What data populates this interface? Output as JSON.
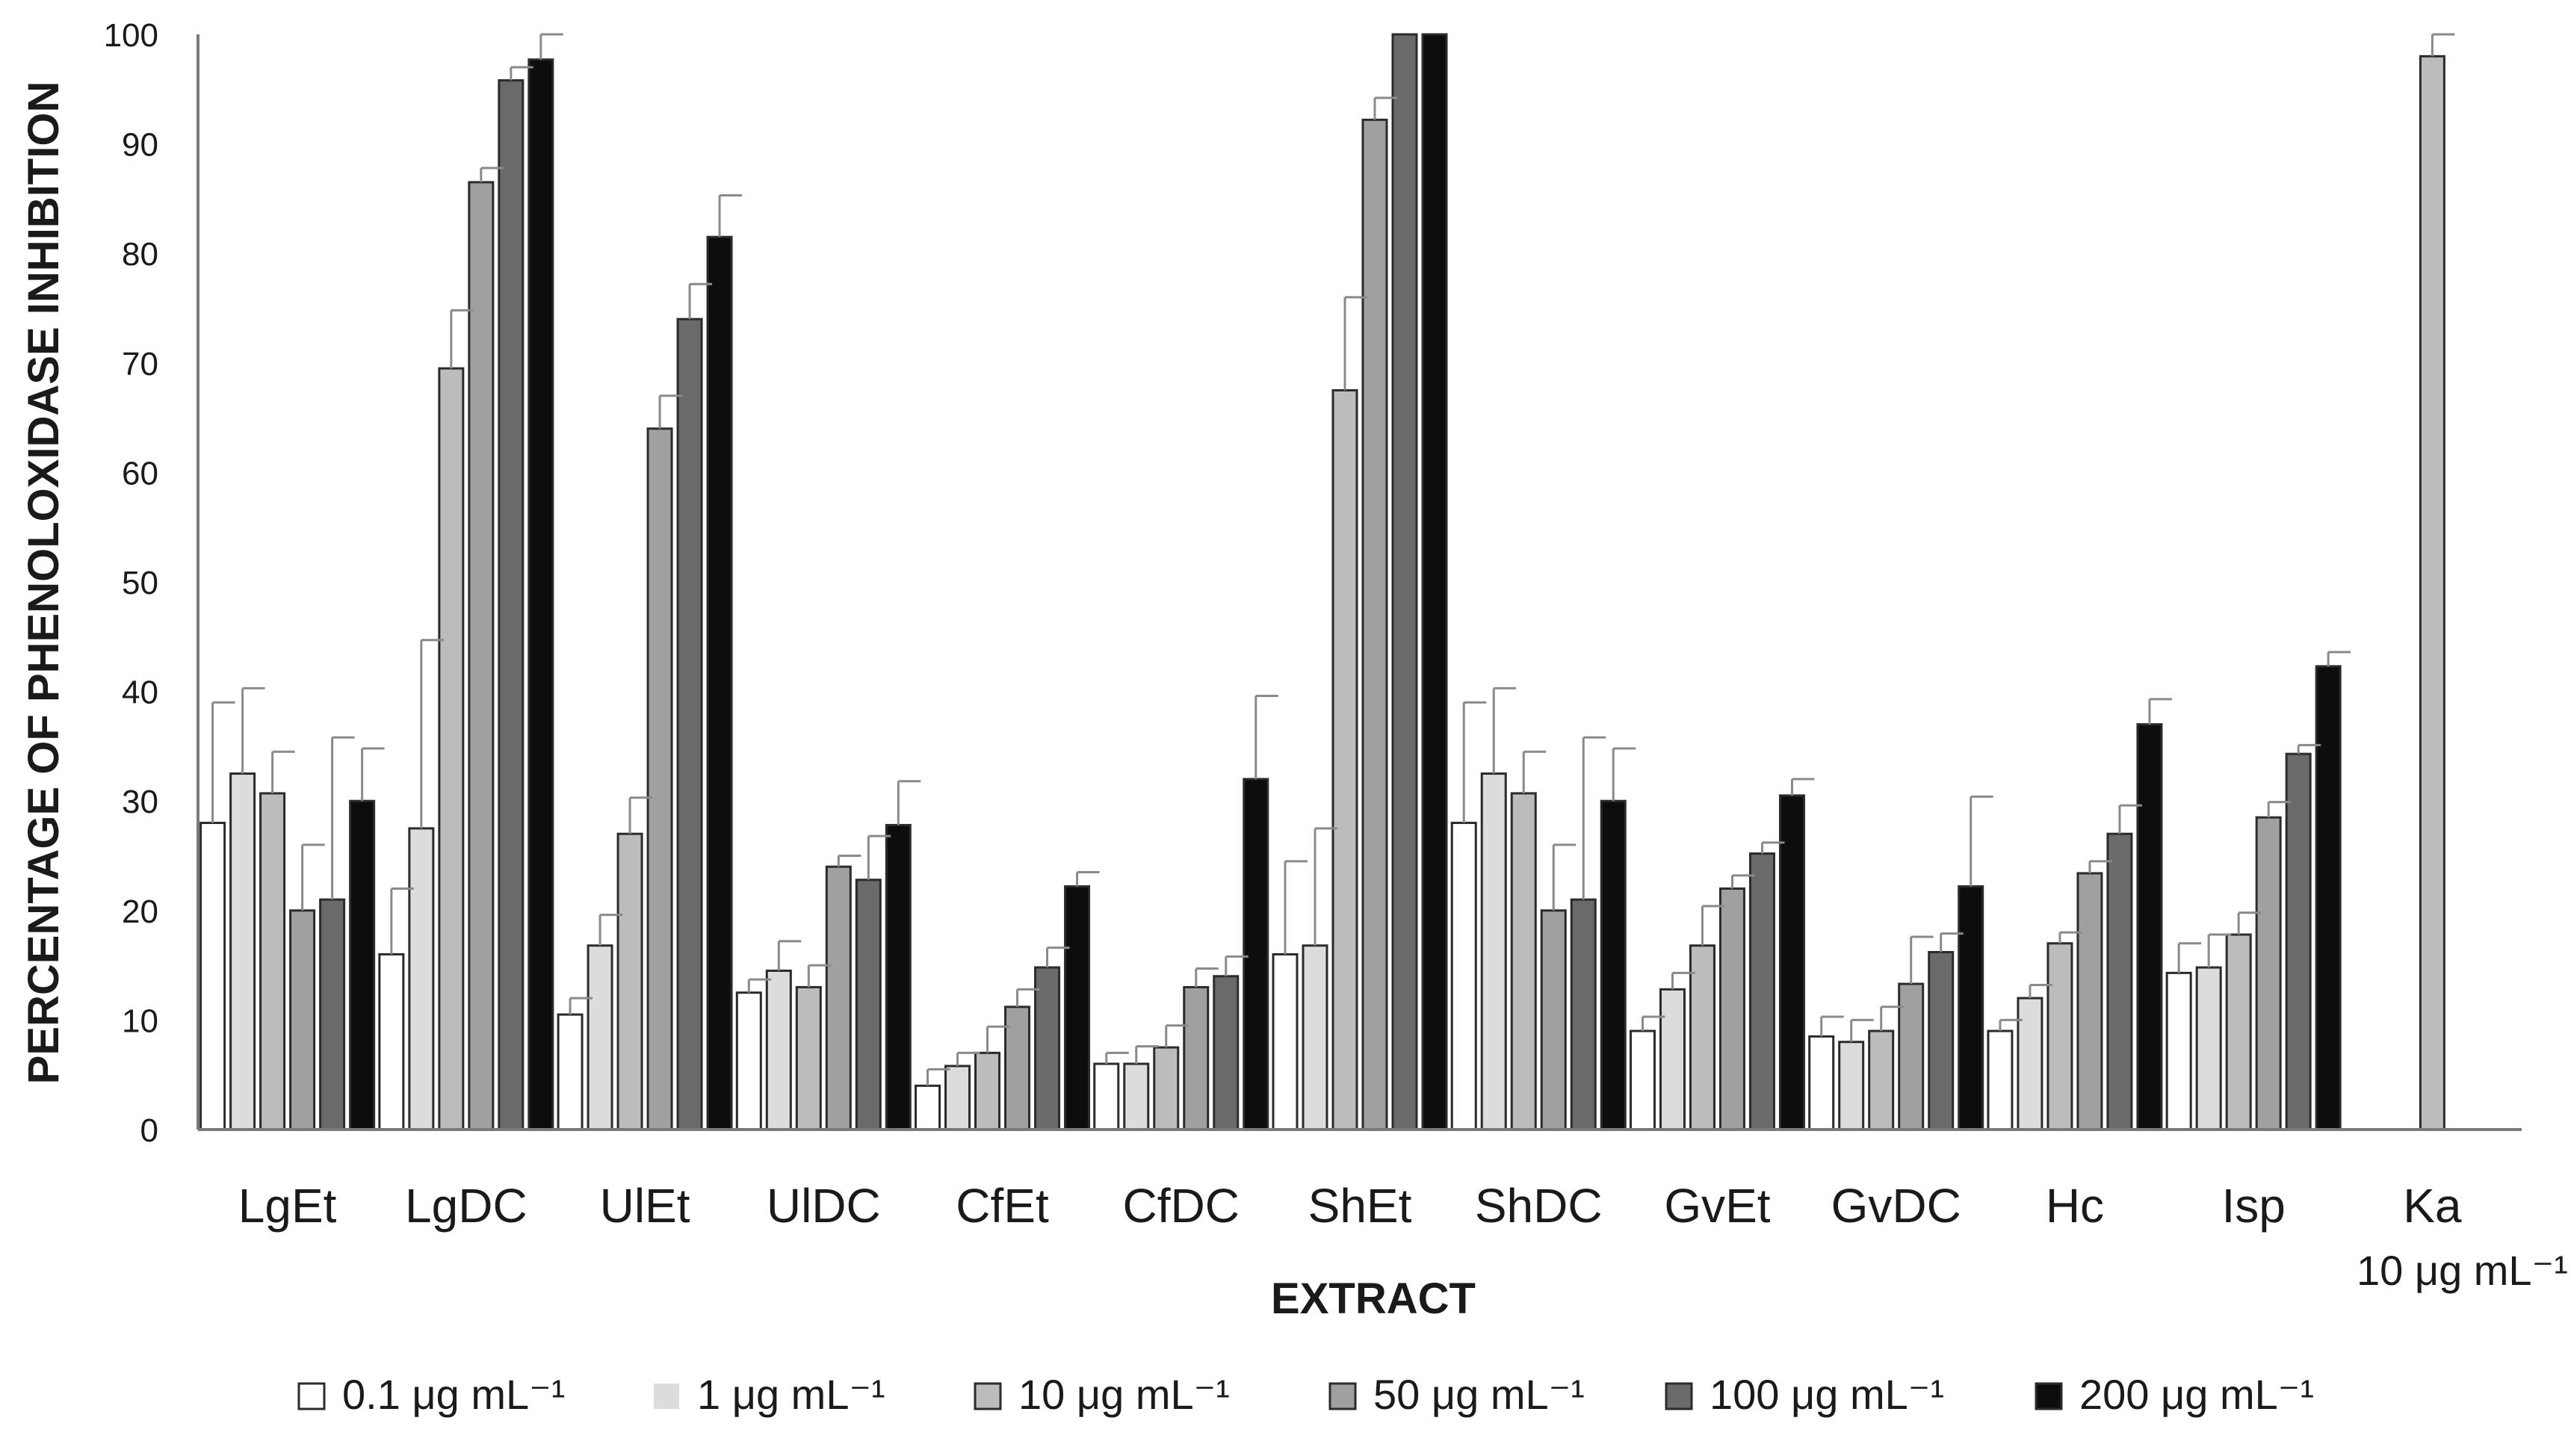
{
  "chart_data": {
    "type": "bar",
    "title": "",
    "xlabel": "EXTRACT",
    "ylabel": "PERCENTAGE OF PHENOLOXIDASE INHIBITION",
    "ylim": [
      0,
      100
    ],
    "yticks": [
      0,
      10,
      20,
      30,
      40,
      50,
      60,
      70,
      80,
      90,
      100
    ],
    "grid": false,
    "legend_position": "bottom",
    "categories": [
      "LgEt",
      "LgDC",
      "UlEt",
      "UlDC",
      "CfEt",
      "CfDC",
      "ShEt",
      "ShDC",
      "GvEt",
      "GvDC",
      "Hc",
      "Isp",
      "Ka"
    ],
    "category_sublabels": {
      "Ka": "10 μg mL⁻¹"
    },
    "series": [
      {
        "name": "0.1 μg mL⁻¹",
        "color": "#ffffff",
        "values": [
          28,
          16,
          10.5,
          12.5,
          4,
          6,
          16,
          28,
          9,
          8.5,
          9,
          14.3,
          null
        ],
        "errors": [
          11,
          6,
          1.5,
          1.2,
          1.5,
          1,
          8.5,
          11,
          1.3,
          1.8,
          1,
          2.7,
          null
        ]
      },
      {
        "name": "1 μg mL⁻¹",
        "color": "#dcdcdc",
        "values": [
          32.5,
          27.5,
          16.8,
          14.5,
          5.8,
          6,
          16.8,
          32.5,
          12.8,
          8,
          12,
          14.8,
          null
        ],
        "errors": [
          7.8,
          17.2,
          2.8,
          2.7,
          1.2,
          1.6,
          10.7,
          7.8,
          1.5,
          2,
          1.2,
          3,
          null
        ]
      },
      {
        "name": "10 μg mL⁻¹",
        "color": "#bcbcbc",
        "values": [
          30.7,
          69.5,
          27,
          13,
          7,
          7.5,
          67.5,
          30.7,
          16.8,
          9,
          17,
          17.8,
          98
        ],
        "errors": [
          3.8,
          5.3,
          3.3,
          2,
          2.4,
          2,
          8.5,
          3.8,
          3.6,
          2.2,
          1,
          2,
          2.1
        ]
      },
      {
        "name": "50 μg mL⁻¹",
        "color": "#a0a0a0",
        "values": [
          20,
          86.5,
          64,
          24,
          11.2,
          13,
          92.2,
          20,
          22,
          13.3,
          23.4,
          28.5,
          null
        ],
        "errors": [
          6,
          1.3,
          3,
          1,
          1.6,
          1.7,
          2,
          6,
          1.2,
          4.3,
          1.1,
          1.4,
          null
        ]
      },
      {
        "name": "100 μg mL⁻¹",
        "color": "#6a6a6a",
        "values": [
          21,
          95.8,
          74,
          22.8,
          14.8,
          14,
          100,
          21,
          25.2,
          16.2,
          27,
          34.3,
          null
        ],
        "errors": [
          14.8,
          1.2,
          3.2,
          4,
          1.8,
          1.8,
          0,
          14.8,
          1,
          1.7,
          2.6,
          0.8,
          null
        ]
      },
      {
        "name": "200 μg mL⁻¹",
        "color": "#0d0d0d",
        "values": [
          30,
          97.7,
          81.5,
          27.8,
          22.2,
          32,
          100,
          30,
          30.5,
          22.2,
          37,
          42.3,
          null
        ],
        "errors": [
          4.8,
          2.3,
          3.8,
          4,
          1.3,
          7.6,
          0,
          4.8,
          1.5,
          8.2,
          2.3,
          1.3,
          null
        ]
      }
    ]
  }
}
